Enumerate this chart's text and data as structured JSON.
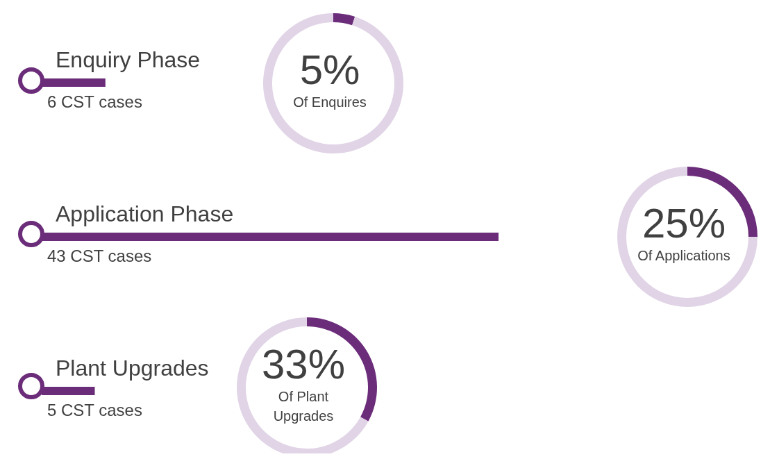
{
  "chart_data": [
    {
      "type": "bar",
      "orientation": "horizontal",
      "categories": [
        "Enquiry Phase",
        "Application Phase",
        "Plant Upgrades"
      ],
      "values": [
        6,
        43,
        5
      ],
      "color": "#6b2c7a",
      "value_labels": [
        "6 CST cases",
        "43 CST cases",
        "5 CST cases"
      ]
    },
    {
      "type": "donut",
      "categories": [
        null,
        null
      ],
      "values": [
        5,
        95
      ],
      "colors": [
        "#6b2c7a",
        "#e0d4e6"
      ],
      "value_labels": [
        "5%",
        null
      ],
      "subtitle": "Of Enquires"
    },
    {
      "type": "donut",
      "categories": [
        null,
        null
      ],
      "values": [
        25,
        75
      ],
      "colors": [
        "#6b2c7a",
        "#e0d4e6"
      ],
      "value_labels": [
        "25%",
        null
      ],
      "subtitle": "Of Applications"
    },
    {
      "type": "donut",
      "categories": [
        null,
        null
      ],
      "values": [
        33,
        67
      ],
      "colors": [
        "#6b2c7a",
        "#e0d4e6"
      ],
      "value_labels": [
        "33%",
        null
      ],
      "subtitle": "Of Plant\nUpgrades"
    }
  ]
}
